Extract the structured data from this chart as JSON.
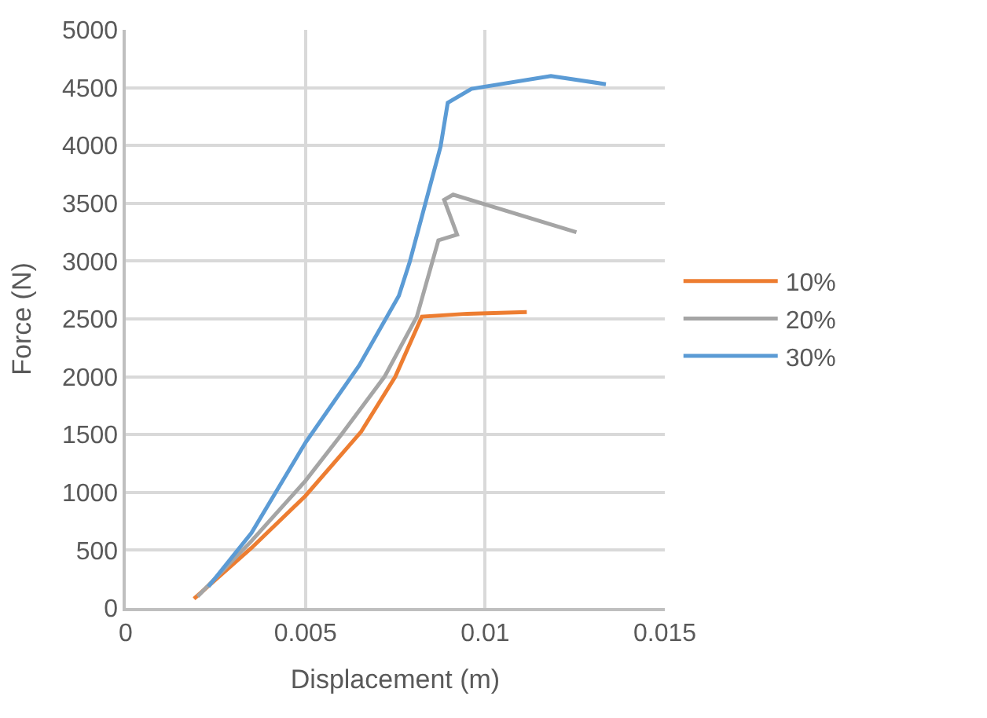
{
  "chart_data": {
    "type": "line",
    "xlabel": "Displacement (m)",
    "ylabel": "Force (N)",
    "xlim": [
      0,
      0.015
    ],
    "xticks": [
      0,
      0.005,
      0.01,
      0.015
    ],
    "ylim": [
      0,
      5000
    ],
    "yticks": [
      0,
      500,
      1000,
      1500,
      2000,
      2500,
      3000,
      3500,
      4000,
      4500,
      5000
    ],
    "grid": true,
    "legend": "right",
    "marker": "none",
    "line_style": "solid",
    "series": [
      {
        "name": "10%",
        "color": "#ed7d31",
        "x": [
          0.0019,
          0.0035,
          0.005,
          0.00655,
          0.0075,
          0.00824,
          0.0095,
          0.01116
        ],
        "values": [
          80,
          520,
          970,
          1525,
          2000,
          2520,
          2545,
          2560
        ]
      },
      {
        "name": "20%",
        "color": "#a5a5a5",
        "x": [
          0.002,
          0.0035,
          0.005,
          0.006,
          0.0072,
          0.0081,
          0.0087,
          0.00922,
          0.00886,
          0.00911,
          0.01254
        ],
        "values": [
          100,
          580,
          1100,
          1500,
          2000,
          2520,
          3180,
          3230,
          3530,
          3575,
          3250
        ]
      },
      {
        "name": "30%",
        "color": "#5b9bd5",
        "x": [
          0.0023,
          0.0035,
          0.005,
          0.0065,
          0.0076,
          0.0079,
          0.00876,
          0.00896,
          0.00962,
          0.01183,
          0.01336
        ],
        "values": [
          185,
          650,
          1430,
          2100,
          2700,
          2990,
          3990,
          4370,
          4490,
          4600,
          4530
        ]
      }
    ]
  }
}
